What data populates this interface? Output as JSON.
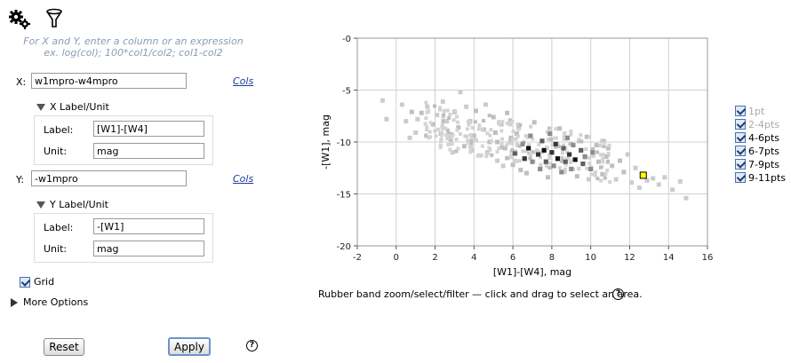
{
  "toolbar": {
    "settings_icon": "gears-icon",
    "filter_icon": "funnel-icon"
  },
  "hint": {
    "line1": "For X and Y, enter a column or an expression",
    "line2": "ex. log(col); 100*col1/col2; col1-col2"
  },
  "x": {
    "label": "X:",
    "value": "w1mpro-w4mpro",
    "cols_link": "Cols",
    "section_title": "X Label/Unit",
    "label_field_label": "Label:",
    "label_value": "[W1]-[W4]",
    "unit_field_label": "Unit:",
    "unit_value": "mag"
  },
  "y": {
    "label": "Y:",
    "value": "-w1mpro",
    "cols_link": "Cols",
    "section_title": "Y Label/Unit",
    "label_field_label": "Label:",
    "label_value": "-[W1]",
    "unit_field_label": "Unit:",
    "unit_value": "mag"
  },
  "grid": {
    "label": "Grid",
    "checked": true
  },
  "more_options": "More Options",
  "buttons": {
    "reset": "Reset",
    "apply": "Apply",
    "help": "?"
  },
  "colors": {
    "hint": "#8a9bb5",
    "link": "#1a3e9c",
    "highlight": "#ffff00"
  },
  "chart_data": {
    "type": "heatmap",
    "xlabel": "[W1]-[W4], mag",
    "ylabel": "-[W1], mag",
    "xlim": [
      -2,
      16
    ],
    "ylim": [
      -20,
      0
    ],
    "xticks": [
      "-2",
      "0",
      "2",
      "4",
      "6",
      "8",
      "10",
      "12",
      "14",
      "16"
    ],
    "yticks": [
      "-0",
      "-5",
      "-10",
      "-15",
      "-20"
    ],
    "grid": true,
    "legend_position": "right",
    "legend": [
      {
        "label": "1pt",
        "enabled": false
      },
      {
        "label": "2-4pts",
        "enabled": false
      },
      {
        "label": "4-6pts",
        "enabled": true
      },
      {
        "label": "6-7pts",
        "enabled": true
      },
      {
        "label": "7-9pts",
        "enabled": true
      },
      {
        "label": "9-11pts",
        "enabled": true
      }
    ],
    "bin_colors": [
      "#cccccc",
      "#bfbfbf",
      "#8c8c8c",
      "#5e5e5e",
      "#363636",
      "#111111"
    ],
    "selected_point": {
      "x": 12.7,
      "y": -13.2
    },
    "bins": [
      {
        "x": -0.7,
        "y": -6.0,
        "level": 0
      },
      {
        "x": -0.5,
        "y": -7.8,
        "level": 0
      },
      {
        "x": 0.3,
        "y": -6.4,
        "level": 0
      },
      {
        "x": 0.5,
        "y": -8.0,
        "level": 0
      },
      {
        "x": 0.8,
        "y": -7.1,
        "level": 1
      },
      {
        "x": 1.1,
        "y": -7.8,
        "level": 0
      },
      {
        "x": 1.3,
        "y": -7.2,
        "level": 1
      },
      {
        "x": 1.0,
        "y": -9.1,
        "level": 0
      },
      {
        "x": 0.7,
        "y": -9.6,
        "level": 0
      },
      {
        "x": 1.6,
        "y": -6.6,
        "level": 0
      },
      {
        "x": 1.9,
        "y": -8.3,
        "level": 1
      },
      {
        "x": 2.1,
        "y": -7.4,
        "level": 0
      },
      {
        "x": 2.3,
        "y": -9.2,
        "level": 1
      },
      {
        "x": 2.4,
        "y": -6.1,
        "level": 0
      },
      {
        "x": 2.6,
        "y": -8.0,
        "level": 0
      },
      {
        "x": 2.8,
        "y": -9.8,
        "level": 1
      },
      {
        "x": 3.0,
        "y": -7.1,
        "level": 1
      },
      {
        "x": 3.2,
        "y": -8.6,
        "level": 1
      },
      {
        "x": 3.3,
        "y": -5.2,
        "level": 0
      },
      {
        "x": 3.5,
        "y": -10.4,
        "level": 1
      },
      {
        "x": 3.6,
        "y": -6.6,
        "level": 0
      },
      {
        "x": 3.8,
        "y": -8.0,
        "level": 1
      },
      {
        "x": 4.0,
        "y": -9.4,
        "level": 1
      },
      {
        "x": 4.1,
        "y": -7.0,
        "level": 1
      },
      {
        "x": 4.3,
        "y": -11.3,
        "level": 0
      },
      {
        "x": 4.5,
        "y": -8.8,
        "level": 1
      },
      {
        "x": 4.6,
        "y": -6.4,
        "level": 0
      },
      {
        "x": 4.8,
        "y": -10.0,
        "level": 1
      },
      {
        "x": 5.0,
        "y": -7.6,
        "level": 1
      },
      {
        "x": 5.1,
        "y": -9.1,
        "level": 1
      },
      {
        "x": 5.2,
        "y": -11.8,
        "level": 0
      },
      {
        "x": 5.4,
        "y": -8.3,
        "level": 1
      },
      {
        "x": 5.6,
        "y": -10.6,
        "level": 1
      },
      {
        "x": 5.7,
        "y": -7.2,
        "level": 1
      },
      {
        "x": 5.9,
        "y": -9.6,
        "level": 1
      },
      {
        "x": 6.0,
        "y": -12.2,
        "level": 1
      },
      {
        "x": 6.1,
        "y": -11.1,
        "level": 3
      },
      {
        "x": 6.3,
        "y": -8.6,
        "level": 1
      },
      {
        "x": 6.5,
        "y": -10.2,
        "level": 2
      },
      {
        "x": 6.6,
        "y": -11.6,
        "level": 4
      },
      {
        "x": 6.7,
        "y": -13.0,
        "level": 1
      },
      {
        "x": 6.8,
        "y": -10.6,
        "level": 5
      },
      {
        "x": 6.9,
        "y": -9.4,
        "level": 2
      },
      {
        "x": 7.0,
        "y": -11.9,
        "level": 2
      },
      {
        "x": 7.1,
        "y": -8.1,
        "level": 1
      },
      {
        "x": 7.3,
        "y": -11.2,
        "level": 4
      },
      {
        "x": 7.4,
        "y": -12.6,
        "level": 2
      },
      {
        "x": 7.5,
        "y": -9.9,
        "level": 3
      },
      {
        "x": 7.6,
        "y": -10.8,
        "level": 5
      },
      {
        "x": 7.7,
        "y": -11.9,
        "level": 3
      },
      {
        "x": 7.8,
        "y": -13.4,
        "level": 1
      },
      {
        "x": 7.9,
        "y": -9.2,
        "level": 2
      },
      {
        "x": 8.0,
        "y": -11.0,
        "level": 4
      },
      {
        "x": 8.1,
        "y": -12.3,
        "level": 2
      },
      {
        "x": 8.2,
        "y": -10.2,
        "level": 4
      },
      {
        "x": 8.3,
        "y": -11.6,
        "level": 5
      },
      {
        "x": 8.4,
        "y": -8.7,
        "level": 1
      },
      {
        "x": 8.5,
        "y": -12.9,
        "level": 2
      },
      {
        "x": 8.6,
        "y": -10.6,
        "level": 3
      },
      {
        "x": 8.7,
        "y": -11.9,
        "level": 3
      },
      {
        "x": 8.8,
        "y": -9.6,
        "level": 2
      },
      {
        "x": 8.9,
        "y": -11.2,
        "level": 4
      },
      {
        "x": 9.0,
        "y": -12.6,
        "level": 2
      },
      {
        "x": 9.1,
        "y": -10.3,
        "level": 2
      },
      {
        "x": 9.2,
        "y": -11.7,
        "level": 5
      },
      {
        "x": 9.3,
        "y": -13.3,
        "level": 1
      },
      {
        "x": 9.4,
        "y": -9.9,
        "level": 1
      },
      {
        "x": 9.5,
        "y": -10.8,
        "level": 3
      },
      {
        "x": 9.6,
        "y": -12.1,
        "level": 3
      },
      {
        "x": 9.7,
        "y": -11.4,
        "level": 2
      },
      {
        "x": 9.8,
        "y": -9.5,
        "level": 1
      },
      {
        "x": 10.0,
        "y": -12.6,
        "level": 2
      },
      {
        "x": 10.1,
        "y": -11.0,
        "level": 2
      },
      {
        "x": 10.3,
        "y": -10.3,
        "level": 1
      },
      {
        "x": 10.4,
        "y": -11.9,
        "level": 1
      },
      {
        "x": 10.6,
        "y": -13.1,
        "level": 1
      },
      {
        "x": 10.8,
        "y": -11.4,
        "level": 1
      },
      {
        "x": 10.9,
        "y": -10.6,
        "level": 1
      },
      {
        "x": 11.1,
        "y": -12.3,
        "level": 1
      },
      {
        "x": 11.3,
        "y": -13.6,
        "level": 0
      },
      {
        "x": 11.5,
        "y": -11.8,
        "level": 1
      },
      {
        "x": 11.7,
        "y": -12.9,
        "level": 1
      },
      {
        "x": 11.9,
        "y": -11.2,
        "level": 0
      },
      {
        "x": 12.1,
        "y": -13.9,
        "level": 0
      },
      {
        "x": 12.3,
        "y": -12.5,
        "level": 0
      },
      {
        "x": 12.5,
        "y": -14.4,
        "level": 0
      },
      {
        "x": 12.9,
        "y": -13.7,
        "level": 0
      },
      {
        "x": 13.2,
        "y": -13.5,
        "level": 0
      },
      {
        "x": 13.5,
        "y": -14.1,
        "level": 0
      },
      {
        "x": 13.8,
        "y": -13.4,
        "level": 0
      },
      {
        "x": 14.2,
        "y": -14.6,
        "level": 0
      },
      {
        "x": 14.6,
        "y": -13.8,
        "level": 0
      },
      {
        "x": 14.9,
        "y": -15.4,
        "level": 0
      },
      {
        "x": 5.2,
        "y": -10.0,
        "level": 1
      },
      {
        "x": 5.5,
        "y": -12.3,
        "level": 0
      },
      {
        "x": 6.2,
        "y": -9.2,
        "level": 1
      },
      {
        "x": 6.4,
        "y": -12.7,
        "level": 1
      },
      {
        "x": 4.7,
        "y": -11.0,
        "level": 1
      },
      {
        "x": 3.9,
        "y": -10.8,
        "level": 0
      },
      {
        "x": 2.9,
        "y": -11.0,
        "level": 0
      },
      {
        "x": 9.9,
        "y": -13.6,
        "level": 0
      },
      {
        "x": 10.6,
        "y": -9.9,
        "level": 0
      }
    ]
  },
  "chart_footer": "Rubber band zoom/select/filter — click and drag to select an area."
}
